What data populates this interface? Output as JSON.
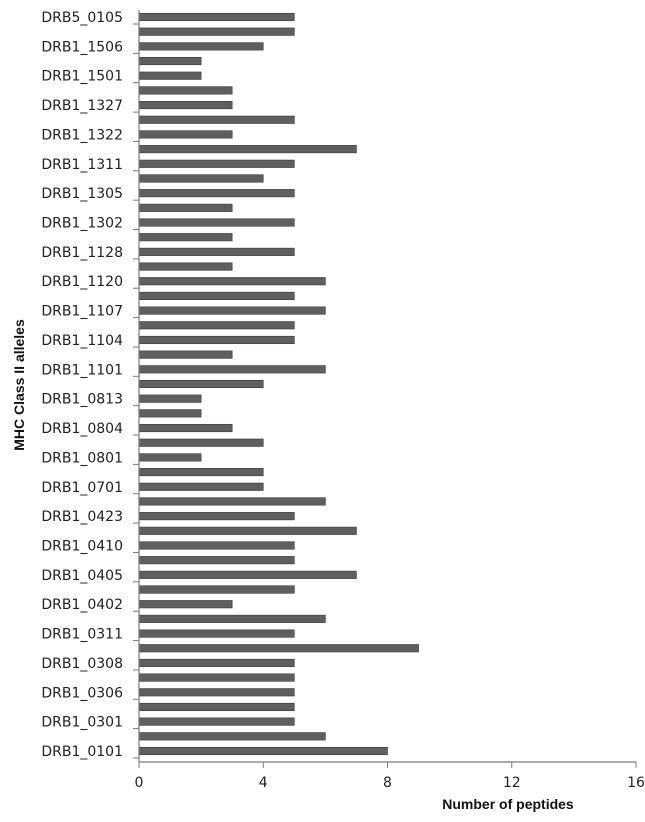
{
  "chart_data": {
    "type": "bar",
    "orientation": "horizontal",
    "xlabel": "Number of peptides",
    "ylabel": "MHC Class II alleles",
    "xlim": [
      0,
      16
    ],
    "xticks": [
      "0",
      "4",
      "8",
      "12",
      "16"
    ],
    "grid": false,
    "bar_color": "#5f5f5f",
    "category_labels": [
      "DRB5_0105",
      "DRB1_1506",
      "DRB1_1501",
      "DRB1_1327",
      "DRB1_1322",
      "DRB1_1311",
      "DRB1_1305",
      "DRB1_1302",
      "DRB1_1128",
      "DRB1_1120",
      "DRB1_1107",
      "DRB1_1104",
      "DRB1_1101",
      "DRB1_0813",
      "DRB1_0804",
      "DRB1_0801",
      "DRB1_0701",
      "DRB1_0423",
      "DRB1_0410",
      "DRB1_0405",
      "DRB1_0402",
      "DRB1_0311",
      "DRB1_0308",
      "DRB1_0306",
      "DRB1_0301",
      "DRB1_0101"
    ],
    "values": [
      5,
      5,
      4,
      2,
      2,
      3,
      3,
      5,
      3,
      7,
      5,
      4,
      5,
      3,
      5,
      3,
      5,
      3,
      6,
      5,
      6,
      5,
      5,
      3,
      6,
      4,
      2,
      2,
      3,
      4,
      2,
      4,
      4,
      6,
      5,
      7,
      5,
      5,
      7,
      5,
      3,
      6,
      5,
      9,
      5,
      5,
      5,
      5,
      5,
      6,
      8
    ]
  }
}
